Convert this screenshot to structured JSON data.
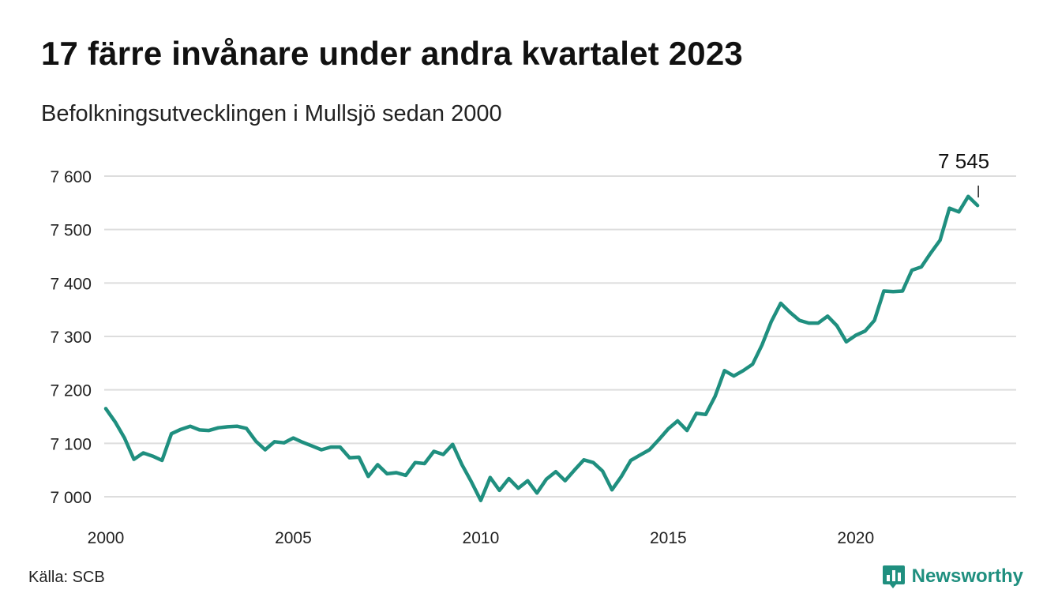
{
  "header": {
    "title": "17 färre invånare under andra kvartalet 2023",
    "subtitle": "Befolkningsutvecklingen i Mullsjö sedan 2000"
  },
  "footer": {
    "source": "Källa: SCB",
    "brand": "Newsworthy",
    "brand_icon": "bar-chart-speech-bubble-icon"
  },
  "colors": {
    "line": "#1f8f7f",
    "grid": "#dddddd",
    "text": "#222222"
  },
  "chart_data": {
    "type": "line",
    "title": "17 färre invånare under andra kvartalet 2023",
    "subtitle": "Befolkningsutvecklingen i Mullsjö sedan 2000",
    "xlabel": "",
    "ylabel": "",
    "x_ticks": [
      2000,
      2005,
      2010,
      2015,
      2020
    ],
    "x_tick_labels": [
      "2000",
      "2005",
      "2010",
      "2015",
      "2020"
    ],
    "y_ticks": [
      7000,
      7100,
      7200,
      7300,
      7400,
      7500,
      7600
    ],
    "y_tick_labels": [
      "7 000",
      "7 100",
      "7 200",
      "7 300",
      "7 400",
      "7 500",
      "7 600"
    ],
    "xlim": [
      2000,
      2023.5
    ],
    "ylim": [
      7000,
      7600
    ],
    "grid": "horizontal",
    "legend": "none",
    "callout": {
      "x": 2023.25,
      "value": 7545,
      "label": "7 545"
    },
    "series": [
      {
        "x": [
          2000.0,
          2000.25,
          2000.5,
          2000.75,
          2001.0,
          2001.25,
          2001.5,
          2001.75,
          2002.0,
          2002.25,
          2002.5,
          2002.75,
          2003.0,
          2003.25,
          2003.5,
          2003.75,
          2004.0,
          2004.25,
          2004.5,
          2004.75,
          2005.0,
          2005.25,
          2005.5,
          2005.75,
          2006.0,
          2006.25,
          2006.5,
          2006.75,
          2007.0,
          2007.25,
          2007.5,
          2007.75,
          2008.0,
          2008.25,
          2008.5,
          2008.75,
          2009.0,
          2009.25,
          2009.5,
          2009.75,
          2010.0,
          2010.25,
          2010.5,
          2010.75,
          2011.0,
          2011.25,
          2011.5,
          2011.75,
          2012.0,
          2012.25,
          2012.5,
          2012.75,
          2013.0,
          2013.25,
          2013.5,
          2013.75,
          2014.0,
          2014.25,
          2014.5,
          2014.75,
          2015.0,
          2015.25,
          2015.5,
          2015.75,
          2016.0,
          2016.25,
          2016.5,
          2016.75,
          2017.0,
          2017.25,
          2017.5,
          2017.75,
          2018.0,
          2018.25,
          2018.5,
          2018.75,
          2019.0,
          2019.25,
          2019.5,
          2019.75,
          2020.0,
          2020.25,
          2020.5,
          2020.75,
          2021.0,
          2021.25,
          2021.5,
          2021.75,
          2022.0,
          2022.25,
          2022.5,
          2022.75,
          2023.0,
          2023.25
        ],
        "values": [
          7165,
          7140,
          7110,
          7070,
          7082,
          7076,
          7068,
          7118,
          7126,
          7132,
          7125,
          7124,
          7129,
          7131,
          7132,
          7128,
          7104,
          7088,
          7103,
          7101,
          7110,
          7102,
          7095,
          7088,
          7093,
          7093,
          7073,
          7074,
          7038,
          7060,
          7043,
          7045,
          7040,
          7064,
          7062,
          7085,
          7079,
          7098,
          7060,
          7028,
          6993,
          7036,
          7012,
          7034,
          7016,
          7030,
          7007,
          7033,
          7047,
          7030,
          7050,
          7069,
          7064,
          7048,
          7013,
          7038,
          7068,
          7078,
          7088,
          7107,
          7127,
          7142,
          7124,
          7156,
          7154,
          7188,
          7236,
          7226,
          7236,
          7248,
          7284,
          7328,
          7362,
          7345,
          7330,
          7325,
          7325,
          7338,
          7320,
          7290,
          7302,
          7310,
          7330,
          7385,
          7384,
          7385,
          7424,
          7430,
          7456,
          7480,
          7540,
          7533,
          7562,
          7545
        ]
      }
    ]
  }
}
